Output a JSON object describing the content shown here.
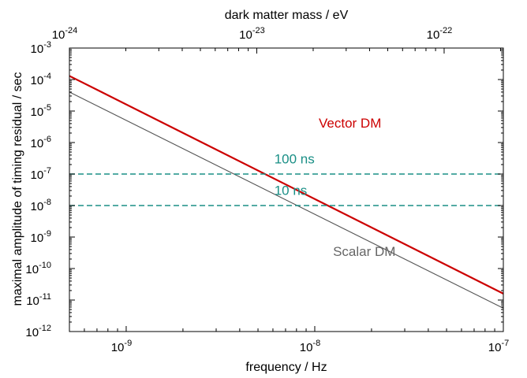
{
  "chart_data": {
    "type": "line",
    "xlabel": "frequency / Hz",
    "x2label": "dark matter mass / eV",
    "ylabel": "maximal amplitude of timing residual / sec",
    "xscale": "log",
    "yscale": "log",
    "xlim": [
      5e-10,
      1e-07
    ],
    "ylim": [
      1e-12,
      0.001
    ],
    "x2lim": [
      1e-24,
      2.07e-22
    ],
    "x_ticks": [
      {
        "value": 1e-09,
        "base": "10",
        "exp": "-9"
      },
      {
        "value": 1e-08,
        "base": "10",
        "exp": "-8"
      },
      {
        "value": 1e-07,
        "base": "10",
        "exp": "-7"
      }
    ],
    "x2_ticks": [
      {
        "value": 1e-24,
        "base": "10",
        "exp": "-24"
      },
      {
        "value": 1e-23,
        "base": "10",
        "exp": "-23"
      },
      {
        "value": 1e-22,
        "base": "10",
        "exp": "-22"
      }
    ],
    "y_ticks": [
      {
        "value": 0.001,
        "base": "10",
        "exp": "-3"
      },
      {
        "value": 0.0001,
        "base": "10",
        "exp": "-4"
      },
      {
        "value": 1e-05,
        "base": "10",
        "exp": "-5"
      },
      {
        "value": 1e-06,
        "base": "10",
        "exp": "-6"
      },
      {
        "value": 1e-07,
        "base": "10",
        "exp": "-7"
      },
      {
        "value": 1e-08,
        "base": "10",
        "exp": "-8"
      },
      {
        "value": 1e-09,
        "base": "10",
        "exp": "-9"
      },
      {
        "value": 1e-10,
        "base": "10",
        "exp": "-10"
      },
      {
        "value": 1e-11,
        "base": "10",
        "exp": "-11"
      },
      {
        "value": 1e-12,
        "base": "10",
        "exp": "-12"
      }
    ],
    "series": [
      {
        "name": "Vector DM",
        "color": "#cc0000",
        "x": [
          5e-10,
          1e-07
        ],
        "y": [
          0.00013,
          1.6e-11
        ]
      },
      {
        "name": "Scalar DM",
        "color": "#555555",
        "x": [
          5e-10,
          1e-07
        ],
        "y": [
          4e-05,
          5.5e-12
        ]
      },
      {
        "name": "100 ns",
        "color": "#1a8f86",
        "style": "dashed",
        "x": [
          5e-10,
          1e-07
        ],
        "y": [
          1e-07,
          1e-07
        ]
      },
      {
        "name": "10 ns",
        "color": "#1a8f86",
        "style": "dashed",
        "x": [
          5e-10,
          1e-07
        ],
        "y": [
          1e-08,
          1e-08
        ]
      }
    ],
    "annotations": [
      {
        "text": "Vector DM",
        "x": 1.05e-08,
        "y": 3e-06,
        "anchor": "start",
        "color": "#cc0000"
      },
      {
        "text": "Scalar DM",
        "x": 1.25e-08,
        "y": 2.5e-10,
        "anchor": "start",
        "color": "#666666"
      },
      {
        "text": "100 ns",
        "x": 6.1e-09,
        "y": 2.2e-07,
        "anchor": "start",
        "color": "#1a8f86"
      },
      {
        "text": "10 ns",
        "x": 6.1e-09,
        "y": 2.2e-08,
        "anchor": "start",
        "color": "#1a8f86"
      }
    ],
    "grid": false,
    "legend": "none"
  }
}
